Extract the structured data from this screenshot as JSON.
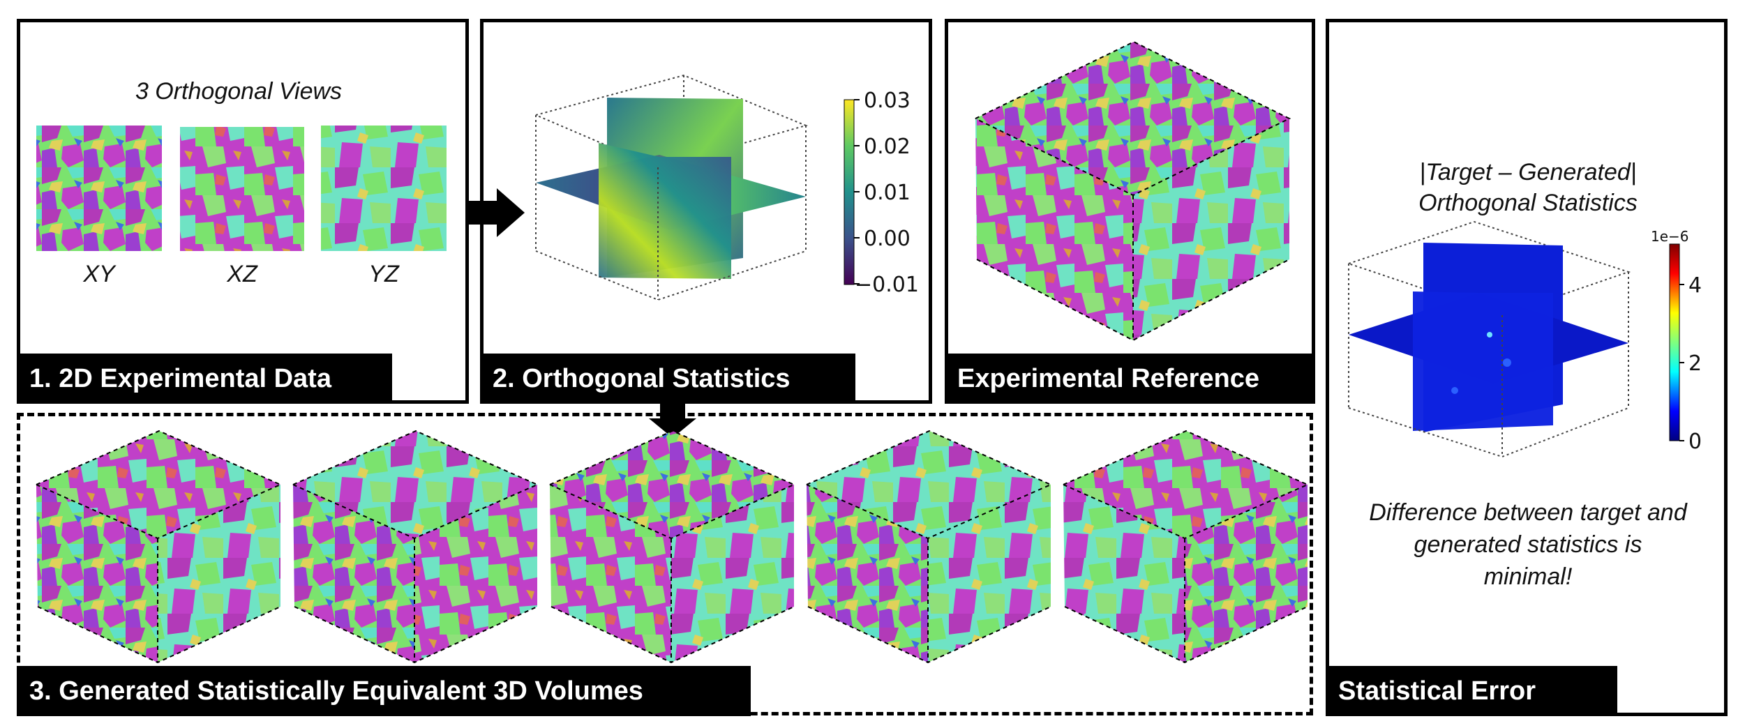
{
  "panel1": {
    "label": "1. 2D Experimental Data",
    "title": "3 Orthogonal Views",
    "views": [
      "XY",
      "XZ",
      "YZ"
    ]
  },
  "panel2": {
    "label": "2. Orthogonal Statistics",
    "colorbar": {
      "ticks": [
        "0.03",
        "0.02",
        "0.01",
        "0.00",
        "−0.01"
      ],
      "colormap": "viridis"
    }
  },
  "panel3": {
    "label": "Experimental Reference"
  },
  "panel4": {
    "title_line1": "|Target – Generated|",
    "title_line2": "Orthogonal Statistics",
    "colorbar": {
      "exponent": "1e−6",
      "ticks": [
        "4",
        "2",
        "0"
      ],
      "colormap": "jet"
    },
    "note": "Difference between target and generated statistics is minimal!",
    "label": "Statistical Error"
  },
  "generated": {
    "label": "3. Generated Statistically Equivalent 3D Volumes",
    "count": 5
  },
  "colors": {
    "magenta": "#b23ab8",
    "green": "#7be36e",
    "cyan": "#6fe3c4",
    "black": "#000000"
  }
}
